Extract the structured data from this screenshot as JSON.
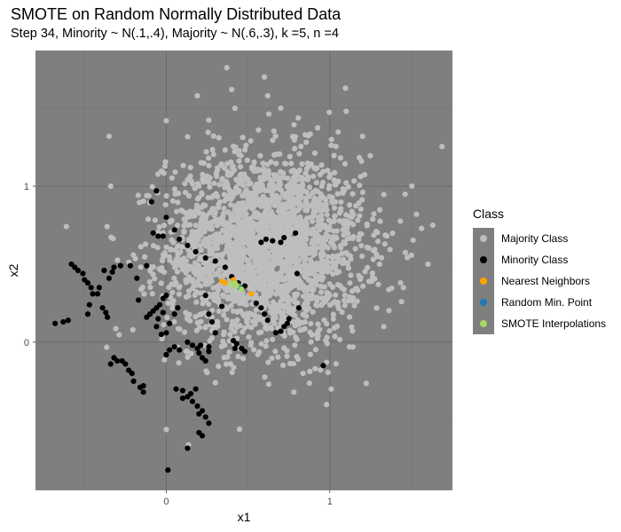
{
  "chart_data": {
    "type": "scatter",
    "title": "SMOTE on Random Normally Distributed Data",
    "subtitle": "Step 34, Minority ~ N(.1,.4), Majority ~ N(.6,.3), k =5, n =4",
    "xlabel": "x1",
    "ylabel": "x2",
    "xlim": [
      -0.8,
      1.75
    ],
    "ylim": [
      -0.95,
      1.87
    ],
    "x_ticks": [
      0,
      1
    ],
    "x_tick_labels": [
      "0",
      "1"
    ],
    "y_ticks": [
      0,
      1
    ],
    "y_tick_labels": [
      "0",
      "1"
    ],
    "grid": true,
    "legend_position": "right",
    "legend_title": "Class",
    "series": [
      {
        "name": "Majority Class",
        "color": "#bebebe",
        "generated": {
          "mean": [
            0.6,
            0.6
          ],
          "sd": 0.3,
          "n": 2600
        },
        "points": [
          [
            0.37,
            1.76
          ],
          [
            0.6,
            1.7
          ],
          [
            0.7,
            1.5
          ],
          [
            0.62,
            1.58
          ],
          [
            0.4,
            1.62
          ],
          [
            0.19,
            1.58
          ],
          [
            1.2,
            1.32
          ],
          [
            1.53,
            0.82
          ],
          [
            1.63,
            0.75
          ],
          [
            1.6,
            0.5
          ],
          [
            1.45,
            0.35
          ],
          [
            1.33,
            0.1
          ],
          [
            0.0,
            1.42
          ],
          [
            -0.35,
            1.32
          ],
          [
            -0.34,
            1.0
          ],
          [
            0.98,
            -0.4
          ],
          [
            0.0,
            -0.56
          ],
          [
            0.78,
            -0.32
          ],
          [
            0.91,
            -0.17
          ],
          [
            0.3,
            -0.26
          ],
          [
            1.12,
            -0.03
          ],
          [
            0.98,
            -0.13
          ],
          [
            0.42,
            1.5
          ],
          [
            1.1,
            1.48
          ],
          [
            0.85,
            1.33
          ]
        ]
      },
      {
        "name": "Minority Class",
        "color": "#000000",
        "points": [
          [
            -0.68,
            0.12
          ],
          [
            -0.63,
            0.13
          ],
          [
            -0.6,
            0.14
          ],
          [
            -0.58,
            0.5
          ],
          [
            -0.56,
            0.48
          ],
          [
            -0.54,
            0.46
          ],
          [
            -0.51,
            0.44
          ],
          [
            -0.5,
            0.4
          ],
          [
            -0.48,
            0.38
          ],
          [
            -0.46,
            0.35
          ],
          [
            -0.45,
            0.31
          ],
          [
            -0.48,
            0.18
          ],
          [
            -0.47,
            0.24
          ],
          [
            -0.42,
            0.31
          ],
          [
            -0.41,
            0.35
          ],
          [
            -0.39,
            0.22
          ],
          [
            -0.38,
            0.46
          ],
          [
            -0.37,
            0.19
          ],
          [
            -0.36,
            0.16
          ],
          [
            -0.33,
            0.45
          ],
          [
            -0.32,
            0.48
          ],
          [
            -0.35,
            0.41
          ],
          [
            -0.28,
            0.49
          ],
          [
            -0.22,
            0.49
          ],
          [
            -0.18,
            0.41
          ],
          [
            -0.17,
            0.27
          ],
          [
            -0.12,
            0.49
          ],
          [
            -0.34,
            -0.14
          ],
          [
            -0.32,
            -0.1
          ],
          [
            -0.3,
            -0.12
          ],
          [
            -0.27,
            -0.12
          ],
          [
            -0.25,
            -0.14
          ],
          [
            -0.23,
            -0.18
          ],
          [
            -0.21,
            -0.2
          ],
          [
            -0.2,
            -0.25
          ],
          [
            -0.16,
            -0.29
          ],
          [
            -0.14,
            -0.32
          ],
          [
            -0.14,
            -0.28
          ],
          [
            -0.12,
            0.16
          ],
          [
            -0.1,
            0.18
          ],
          [
            -0.08,
            0.2
          ],
          [
            -0.06,
            0.22
          ],
          [
            -0.04,
            0.24
          ],
          [
            -0.02,
            0.28
          ],
          [
            0.0,
            0.3
          ],
          [
            -0.05,
            0.15
          ],
          [
            -0.02,
            0.19
          ],
          [
            -0.06,
            0.1
          ],
          [
            -0.03,
            0.05
          ],
          [
            0.0,
            0.06
          ],
          [
            0.02,
            0.12
          ],
          [
            0.05,
            0.18
          ],
          [
            0.07,
            0.22
          ],
          [
            0.0,
            -0.08
          ],
          [
            0.02,
            -0.05
          ],
          [
            0.05,
            -0.03
          ],
          [
            0.08,
            -0.05
          ],
          [
            0.0,
            0.8
          ],
          [
            0.05,
            0.72
          ],
          [
            0.08,
            0.66
          ],
          [
            -0.08,
            0.7
          ],
          [
            -0.05,
            0.68
          ],
          [
            -0.02,
            0.68
          ],
          [
            -0.09,
            0.9
          ],
          [
            -0.06,
            0.97
          ],
          [
            0.13,
            0.62
          ],
          [
            0.18,
            0.58
          ],
          [
            0.24,
            0.54
          ],
          [
            0.3,
            0.52
          ],
          [
            0.36,
            0.48
          ],
          [
            0.4,
            0.42
          ],
          [
            0.44,
            0.38
          ],
          [
            0.48,
            0.36
          ],
          [
            0.34,
            0.23
          ],
          [
            0.3,
            0.06
          ],
          [
            0.28,
            0.13
          ],
          [
            0.26,
            0.18
          ],
          [
            0.24,
            0.3
          ],
          [
            0.13,
            0.0
          ],
          [
            0.16,
            -0.02
          ],
          [
            0.19,
            -0.04
          ],
          [
            0.2,
            -0.07
          ],
          [
            0.22,
            -0.1
          ],
          [
            0.24,
            -0.12
          ],
          [
            0.26,
            -0.06
          ],
          [
            0.26,
            -0.03
          ],
          [
            0.21,
            -0.02
          ],
          [
            0.41,
            0.01
          ],
          [
            0.43,
            -0.01
          ],
          [
            0.46,
            -0.04
          ],
          [
            0.48,
            -0.06
          ],
          [
            0.42,
            -0.04
          ],
          [
            0.06,
            -0.3
          ],
          [
            0.1,
            -0.31
          ],
          [
            0.13,
            -0.35
          ],
          [
            0.16,
            -0.38
          ],
          [
            0.19,
            -0.41
          ],
          [
            0.22,
            -0.44
          ],
          [
            0.24,
            -0.48
          ],
          [
            0.26,
            -0.52
          ],
          [
            0.1,
            -0.36
          ],
          [
            0.15,
            -0.33
          ],
          [
            0.18,
            -0.3
          ],
          [
            0.2,
            -0.46
          ],
          [
            0.2,
            -0.58
          ],
          [
            0.22,
            -0.6
          ],
          [
            0.13,
            -0.68
          ],
          [
            0.01,
            -0.82
          ],
          [
            0.58,
            0.64
          ],
          [
            0.61,
            0.66
          ],
          [
            0.65,
            0.65
          ],
          [
            0.7,
            0.64
          ],
          [
            0.72,
            0.67
          ],
          [
            0.79,
            0.7
          ],
          [
            0.8,
            0.44
          ],
          [
            0.81,
            0.22
          ],
          [
            0.75,
            0.15
          ],
          [
            0.74,
            0.12
          ],
          [
            0.72,
            0.1
          ],
          [
            0.7,
            0.07
          ],
          [
            0.67,
            0.06
          ],
          [
            0.62,
            0.14
          ],
          [
            0.6,
            0.18
          ],
          [
            0.58,
            0.22
          ],
          [
            0.55,
            0.25
          ],
          [
            0.96,
            -0.15
          ]
        ]
      },
      {
        "name": "Nearest Neighbors",
        "color": "#ffa500",
        "points": [
          [
            0.34,
            0.39
          ],
          [
            0.36,
            0.38
          ],
          [
            0.41,
            0.4
          ],
          [
            0.44,
            0.36
          ],
          [
            0.52,
            0.31
          ]
        ]
      },
      {
        "name": "Random Min. Point",
        "color": "#1f78b4",
        "points": [
          [
            0.45,
            0.35
          ]
        ]
      },
      {
        "name": "SMOTE Interpolations",
        "color": "#a6d96a",
        "points": [
          [
            0.4,
            0.37
          ],
          [
            0.42,
            0.38
          ],
          [
            0.43,
            0.36
          ],
          [
            0.46,
            0.34
          ]
        ]
      }
    ]
  }
}
